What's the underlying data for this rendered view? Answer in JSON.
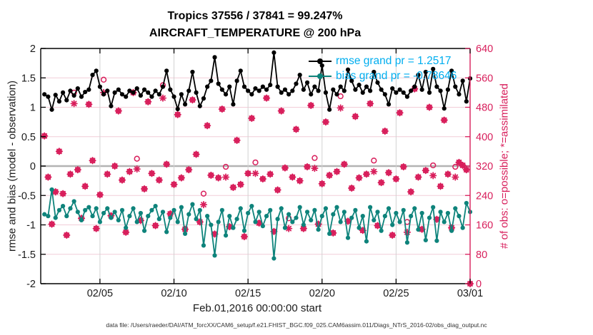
{
  "figure": {
    "title": "Tropics 37556 / 37841 = 99.247%",
    "subtitle": "AIRCRAFT_TEMPERATURE @ 200 hPa",
    "xlabel": "Feb.01,2016 00:00:00 start",
    "ylabel_left": "rmse and bias (model - observation)",
    "ylabel_right": "# of obs: o=possible; *=assimilated",
    "footer": "data file: /Users/raeder/DAI/ATM_forcXX/CAM6_setup/f.e21.FHIST_BGC.f09_025.CAM6assim.011/Diags_NTrS_2016-02/obs_diag_output.nc"
  },
  "colors": {
    "rmse": "#000000",
    "bias": "#0e837b",
    "obs_counts": "#d81e5b",
    "legend_text": "#00aeef",
    "grid_pink": "#f2cdd8",
    "grid_gray": "#d2d2d2",
    "zero_line": "#b3b3b3",
    "axis_black": "#000000",
    "tick_text": "#1a1a1a"
  },
  "legend": {
    "rmse_label": "rmse grand pr = 1.2517",
    "bias_label": "bias grand pr = -0.78646"
  },
  "chart_data": {
    "type": "line",
    "title": "Tropics 37556 / 37841 = 99.247%",
    "subtitle": "AIRCRAFT_TEMPERATURE @ 200 hPa",
    "xlabel": "Feb.01,2016 00:00:00 start",
    "x_axis": {
      "range_days": [
        0,
        29
      ],
      "time_step_days": 0.25,
      "ticks": [
        {
          "t": 4,
          "label": "02/05"
        },
        {
          "t": 9,
          "label": "02/10"
        },
        {
          "t": 14,
          "label": "02/15"
        },
        {
          "t": 19,
          "label": "02/20"
        },
        {
          "t": 24,
          "label": "02/25"
        },
        {
          "t": 29,
          "label": "03/01"
        }
      ]
    },
    "y_axis_left": {
      "label": "rmse and bias (model - observation)",
      "range": [
        -2,
        2
      ],
      "ticks": [
        {
          "v": -2,
          "label": "-2"
        },
        {
          "v": -1.5,
          "label": "-1.5"
        },
        {
          "v": -1,
          "label": "-1"
        },
        {
          "v": -0.5,
          "label": "-0.5"
        },
        {
          "v": 0,
          "label": "0"
        },
        {
          "v": 0.5,
          "label": "0.5"
        },
        {
          "v": 1,
          "label": "1"
        },
        {
          "v": 1.5,
          "label": "1.5"
        },
        {
          "v": 2,
          "label": "2"
        }
      ]
    },
    "y_axis_right": {
      "label": "# of obs: o=possible; *=assimilated",
      "range": [
        0,
        640
      ],
      "ticks": [
        {
          "v": 0,
          "label": "0"
        },
        {
          "v": 80,
          "label": "80"
        },
        {
          "v": 160,
          "label": "160"
        },
        {
          "v": 240,
          "label": "240"
        },
        {
          "v": 320,
          "label": "320"
        },
        {
          "v": 400,
          "label": "400"
        },
        {
          "v": 480,
          "label": "480"
        },
        {
          "v": 560,
          "label": "560"
        },
        {
          "v": 640,
          "label": "640"
        }
      ]
    },
    "grand_stats": {
      "rmse": 1.2517,
      "bias": -0.78646,
      "assimilated_total": 37556,
      "possible_total": 37841,
      "percent": 99.247
    },
    "series": [
      {
        "name": "rmse",
        "legend": "rmse grand pr = 1.2517",
        "axis": "left",
        "marker": "dot",
        "values": [
          1.22,
          1.18,
          0.96,
          1.21,
          1.1,
          1.25,
          1.12,
          1.28,
          1.2,
          1.32,
          1.18,
          1.26,
          1.3,
          1.55,
          1.62,
          1.35,
          1.22,
          1.28,
          1.02,
          1.25,
          1.3,
          1.22,
          1.18,
          1.28,
          1.25,
          1.32,
          1.2,
          1.3,
          1.25,
          1.18,
          1.28,
          1.22,
          1.35,
          1.62,
          1.3,
          1.18,
          0.97,
          1.22,
          1.05,
          1.28,
          1.6,
          1.25,
          1.02,
          1.15,
          1.35,
          1.45,
          1.85,
          1.4,
          1.3,
          1.22,
          1.35,
          1.05,
          1.45,
          1.62,
          1.35,
          1.28,
          1.22,
          1.32,
          1.28,
          1.35,
          1.3,
          1.38,
          1.93,
          1.35,
          1.25,
          1.3,
          1.22,
          1.28,
          1.4,
          1.55,
          1.3,
          1.42,
          1.22,
          1.35,
          1.28,
          1.71,
          1.25,
          0.96,
          1.3,
          1.22,
          1.35,
          1.28,
          1.64,
          1.45,
          1.3,
          1.38,
          1.25,
          1.35,
          1.28,
          1.6,
          1.42,
          1.3,
          1.22,
          1.05,
          1.32,
          1.25,
          1.3,
          1.25,
          1.18,
          1.28,
          1.35,
          1.55,
          1.3,
          1.6,
          1.25,
          1.65,
          1.35,
          1.28,
          0.98,
          1.3,
          1.62,
          1.35,
          1.22,
          1.45,
          1.1,
          1.49
        ]
      },
      {
        "name": "bias",
        "legend": "bias grand pr = -0.78646",
        "axis": "left",
        "marker": "dot",
        "values": [
          -0.82,
          -0.85,
          -0.4,
          -0.88,
          -0.75,
          -0.68,
          -0.85,
          -0.72,
          -0.6,
          -0.78,
          -0.92,
          -0.75,
          -0.7,
          -0.85,
          -0.72,
          -0.95,
          -0.8,
          -0.72,
          -0.88,
          -0.78,
          -0.92,
          -0.75,
          -1.05,
          -0.85,
          -0.72,
          -0.95,
          -0.8,
          -1.1,
          -0.85,
          -0.75,
          -0.68,
          -0.9,
          -0.78,
          -1.12,
          -0.88,
          -0.75,
          -0.95,
          -0.7,
          -1.15,
          -0.82,
          -0.65,
          -0.9,
          -0.75,
          -1.35,
          -0.85,
          -1.0,
          -1.52,
          -0.95,
          -0.75,
          -1.18,
          -0.85,
          -1.05,
          -0.9,
          -0.72,
          -1.1,
          -0.8,
          -0.68,
          -0.95,
          -0.78,
          -1.02,
          -0.85,
          -0.75,
          -1.57,
          -0.9,
          -0.72,
          -1.05,
          -0.82,
          -0.95,
          -0.88,
          -0.7,
          -1.0,
          -0.78,
          -0.92,
          -0.75,
          -1.08,
          -0.85,
          -0.72,
          -1.15,
          -0.82,
          -0.7,
          -0.95,
          -0.78,
          -1.22,
          -0.88,
          -0.75,
          -1.05,
          -0.85,
          -1.28,
          -0.7,
          -0.92,
          -0.78,
          -1.1,
          -0.85,
          -0.72,
          -1.0,
          -0.8,
          -0.95,
          -0.75,
          -1.3,
          -0.85,
          -0.72,
          -1.08,
          -0.8,
          -1.26,
          -0.88,
          -0.7,
          -1.27,
          -0.78,
          -0.95,
          -0.8,
          -1.1,
          -0.72,
          -0.85,
          -1.05,
          -0.63,
          -0.78
        ]
      },
      {
        "name": "possible_obs",
        "legend": "o=possible",
        "axis": "right",
        "marker": "o",
        "values": [
          402,
          290,
          162,
          250,
          360,
          245,
          132,
          298,
          520,
          310,
          178,
          265,
          488,
          335,
          150,
          242,
          555,
          298,
          185,
          320,
          470,
          282,
          140,
          305,
          520,
          340,
          172,
          258,
          495,
          300,
          158,
          282,
          540,
          325,
          190,
          270,
          460,
          288,
          148,
          310,
          500,
          352,
          168,
          245,
          430,
          295,
          135,
          288,
          475,
          318,
          155,
          262,
          390,
          270,
          128,
          300,
          450,
          330,
          165,
          285,
          505,
          298,
          142,
          255,
          470,
          315,
          178,
          290,
          420,
          280,
          150,
          318,
          485,
          342,
          162,
          272,
          440,
          295,
          138,
          305,
          510,
          325,
          170,
          260,
          455,
          288,
          145,
          298,
          490,
          335,
          158,
          275,
          415,
          302,
          132,
          285,
          465,
          318,
          168,
          250,
          530,
          290,
          148,
          308,
          480,
          322,
          175,
          265,
          445,
          298,
          152,
          318,
          330,
          322,
          310,
          0
        ]
      },
      {
        "name": "assimilated_obs",
        "legend": "*=assimilated",
        "axis": "right",
        "marker": "asterisk",
        "values": [
          402,
          290,
          162,
          250,
          360,
          245,
          132,
          298,
          490,
          310,
          178,
          265,
          488,
          335,
          150,
          242,
          520,
          298,
          185,
          320,
          470,
          282,
          140,
          305,
          520,
          312,
          172,
          258,
          495,
          300,
          158,
          282,
          505,
          325,
          190,
          270,
          460,
          288,
          148,
          310,
          500,
          352,
          168,
          215,
          430,
          295,
          135,
          288,
          475,
          290,
          155,
          262,
          390,
          270,
          128,
          300,
          450,
          300,
          165,
          285,
          505,
          298,
          142,
          255,
          470,
          315,
          150,
          290,
          420,
          280,
          150,
          318,
          485,
          314,
          162,
          272,
          440,
          295,
          138,
          305,
          478,
          325,
          170,
          260,
          455,
          288,
          145,
          298,
          490,
          305,
          158,
          275,
          415,
          302,
          132,
          285,
          465,
          318,
          140,
          250,
          530,
          290,
          148,
          308,
          480,
          294,
          175,
          265,
          445,
          298,
          152,
          290,
          330,
          322,
          310,
          0
        ]
      }
    ],
    "legend_position": "top-right-inside",
    "grid": "on"
  }
}
